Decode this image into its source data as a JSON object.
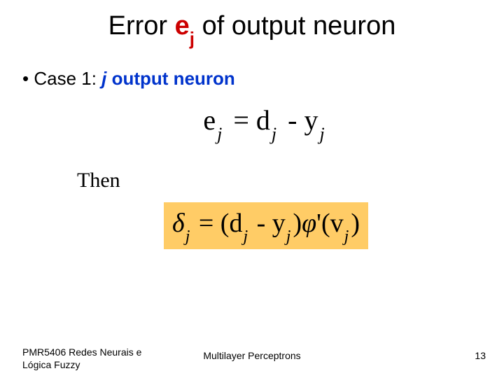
{
  "title": {
    "prefix": "Error ",
    "ej_e": "e",
    "ej_j": "j",
    "suffix": " of output neuron"
  },
  "bullet": {
    "prefix": "•  Case 1: ",
    "j": "j",
    "rest": " output neuron"
  },
  "eq1": {
    "lhs_sym": "e",
    "lhs_sub": "j",
    "eq": " = ",
    "d": "d",
    "d_sub": "j",
    "minus": " - ",
    "y": "y",
    "y_sub": "j"
  },
  "then": "Then",
  "eq2": {
    "delta": "δ",
    "delta_sub": "j",
    "eq": " = (",
    "d": "d",
    "d_sub": "j",
    "minus": " - ",
    "y": "y",
    "y_sub": "j",
    "close": ")",
    "phi": "φ",
    "prime": "'",
    "open2": "(v",
    "v_sub": "j",
    "close2": ")"
  },
  "footer": {
    "left_line1": "PMR5406 Redes Neurais e",
    "left_line2": "Lógica Fuzzy",
    "center": "Multilayer Perceptrons",
    "page": "13"
  },
  "colors": {
    "title_red": "#cc0000",
    "bullet_blue": "#0033cc",
    "eq2_bg": "#ffcc66",
    "background": "#ffffff"
  }
}
